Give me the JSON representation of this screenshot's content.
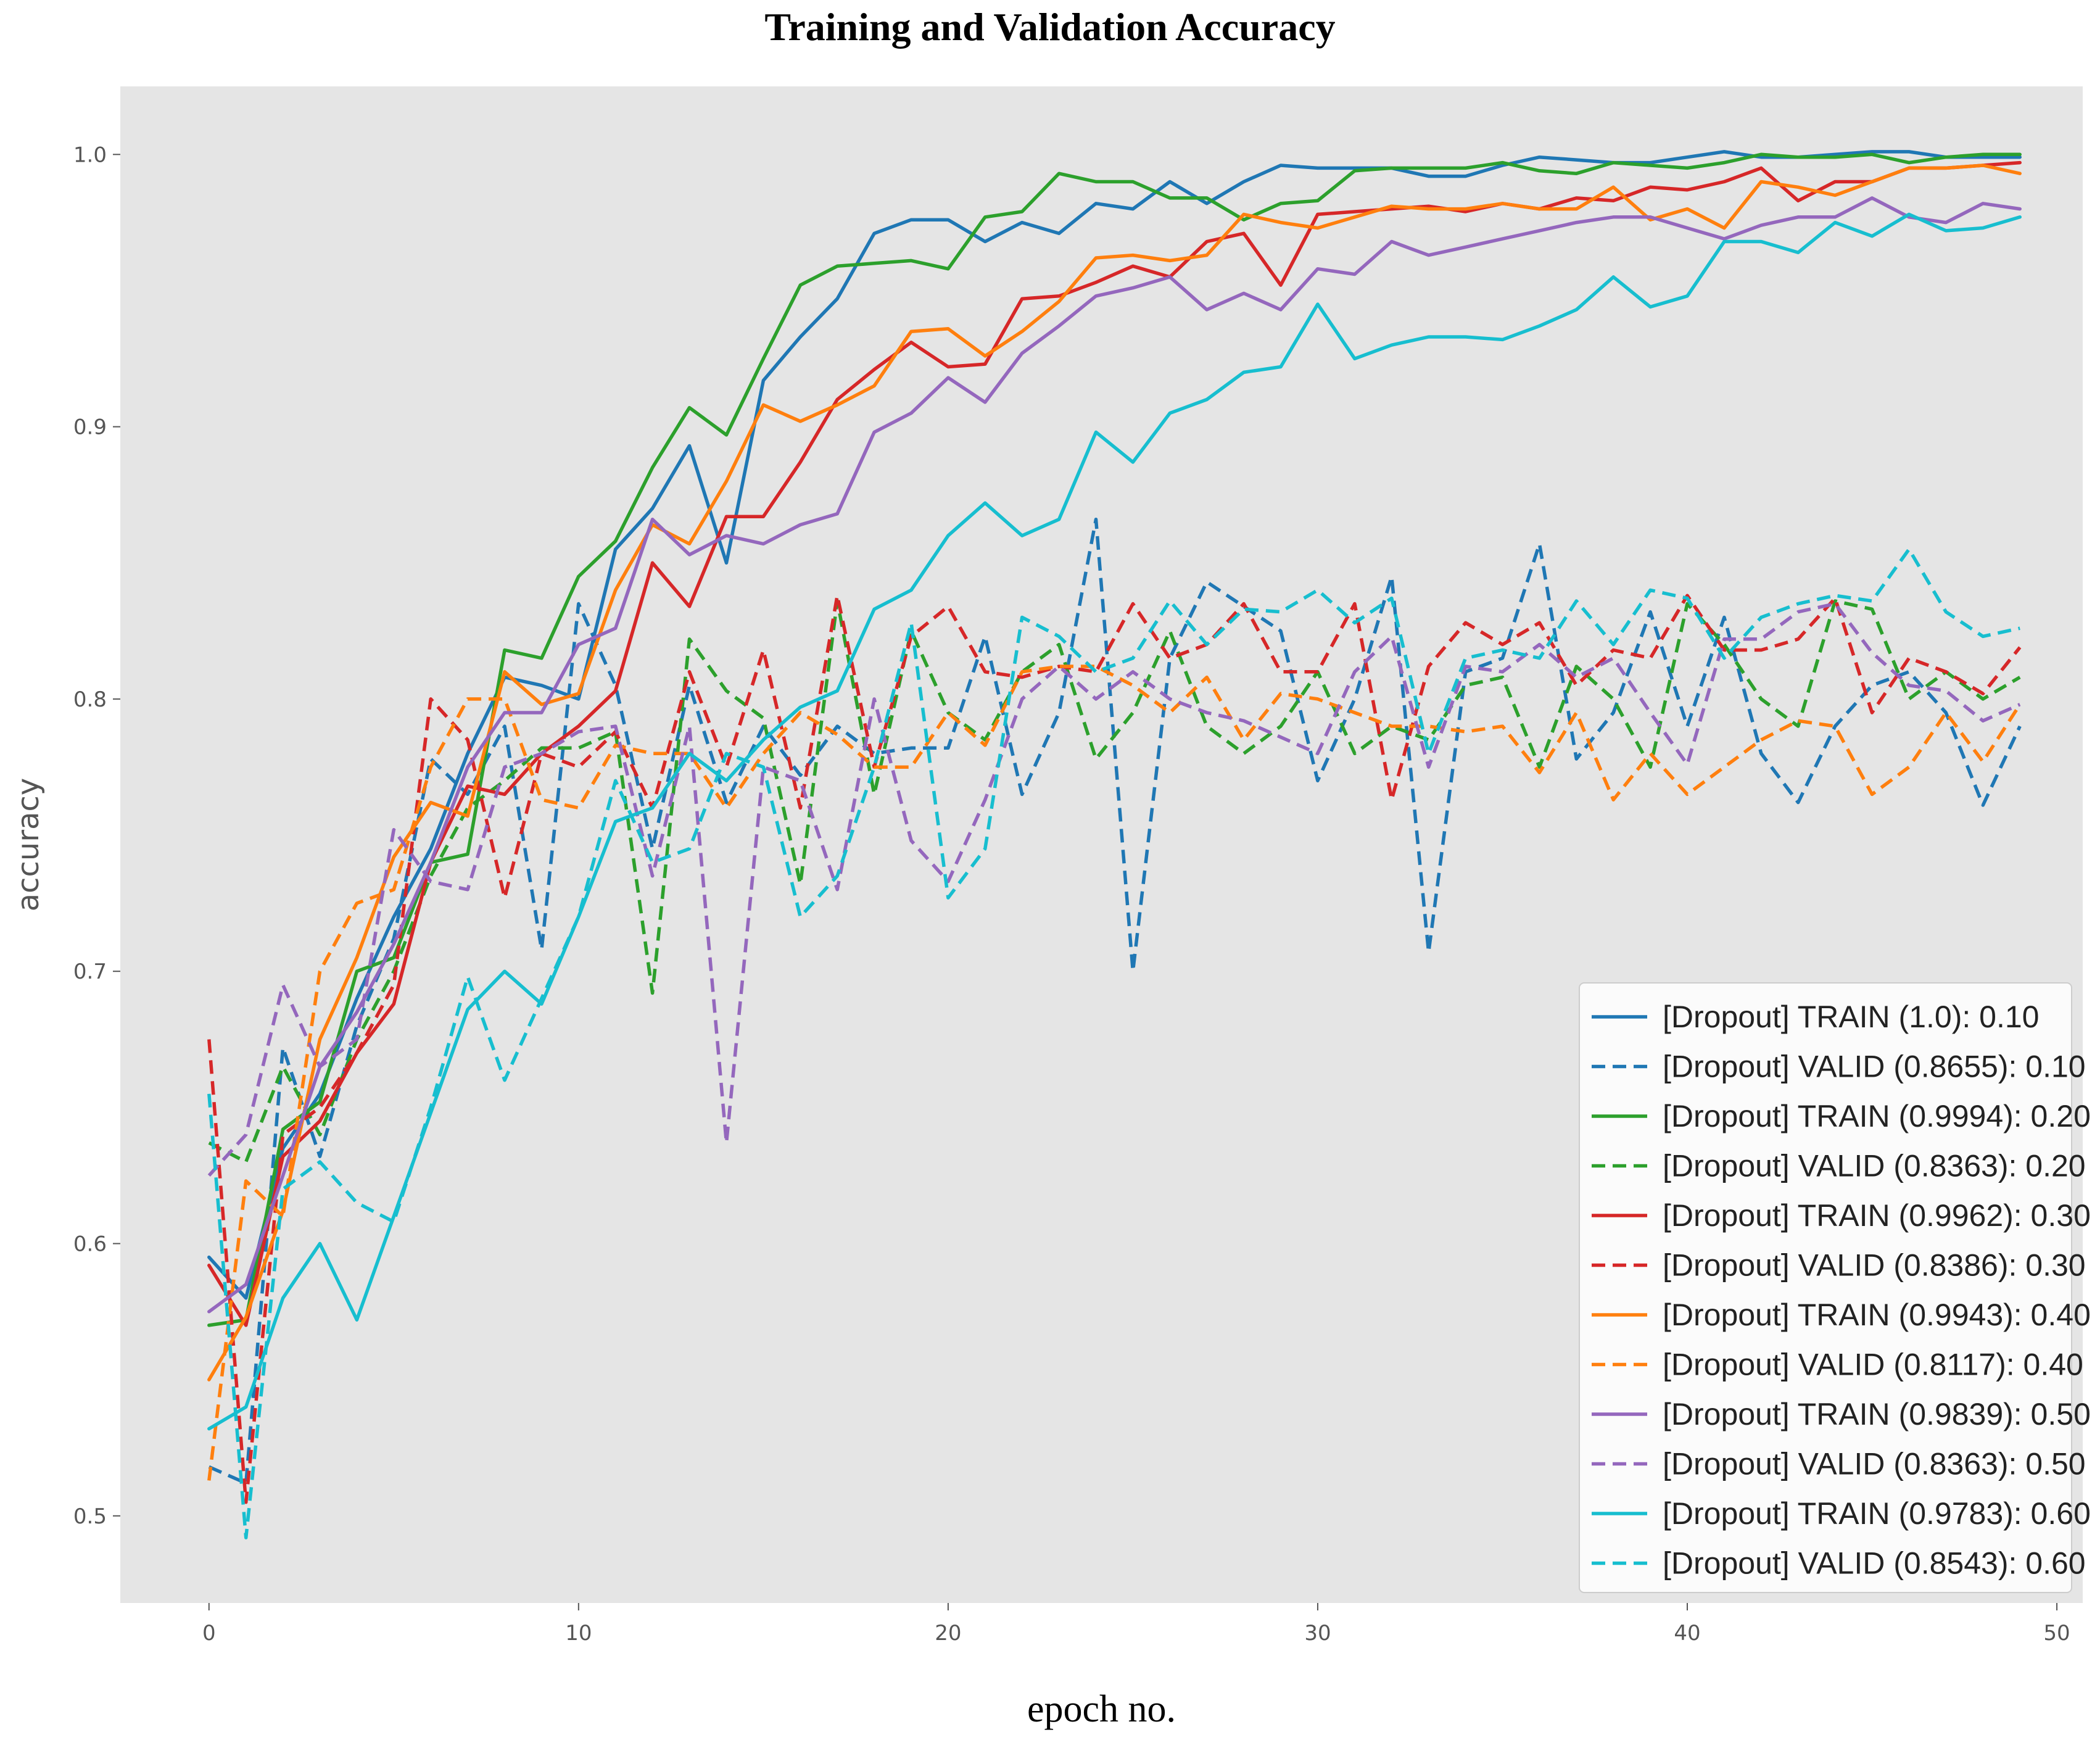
{
  "chart_data": {
    "type": "line",
    "title": "Training and Validation Accuracy",
    "xlabel": "epoch no.",
    "ylabel": "accuracy",
    "xlim": [
      -2.4,
      50.7
    ],
    "ylim": [
      0.468,
      1.025
    ],
    "xticks": [
      0,
      10,
      20,
      30,
      40,
      50
    ],
    "xtick_labels": [
      "0",
      "10",
      "20",
      "30",
      "40",
      "50"
    ],
    "yticks": [
      0.5,
      0.6,
      0.7,
      0.8,
      0.9,
      1.0
    ],
    "ytick_labels": [
      "0.5",
      "0.6",
      "0.7",
      "0.8",
      "0.9",
      "1.0"
    ],
    "grid": false,
    "legend_position": "bottom-right",
    "background": "#e5e5e5",
    "x": [
      0,
      1,
      2,
      3,
      4,
      5,
      6,
      7,
      8,
      9,
      10,
      11,
      12,
      13,
      14,
      15,
      16,
      17,
      18,
      19,
      20,
      21,
      22,
      23,
      24,
      25,
      26,
      27,
      28,
      29,
      30,
      31,
      32,
      33,
      34,
      35,
      36,
      37,
      38,
      39,
      40,
      41,
      42,
      43,
      44,
      45,
      46,
      47,
      48,
      49
    ],
    "series": [
      {
        "name": "[Dropout] TRAIN (1.0): 0.10",
        "color": "#1f77b4",
        "style": "solid",
        "values": [
          0.595,
          0.58,
          0.635,
          0.655,
          0.69,
          0.72,
          0.745,
          0.78,
          0.808,
          0.805,
          0.8,
          0.855,
          0.87,
          0.893,
          0.85,
          0.917,
          0.933,
          0.947,
          0.971,
          0.976,
          0.976,
          0.968,
          0.975,
          0.971,
          0.982,
          0.98,
          0.99,
          0.982,
          0.99,
          0.996,
          0.995,
          0.995,
          0.995,
          0.992,
          0.992,
          0.996,
          0.999,
          0.998,
          0.997,
          0.997,
          0.999,
          1.001,
          0.999,
          0.999,
          1.0,
          1.001,
          1.001,
          0.999,
          0.999,
          0.999
        ]
      },
      {
        "name": "[Dropout] VALID (0.8655): 0.10",
        "color": "#1f77b4",
        "style": "dashed",
        "values": [
          0.518,
          0.512,
          0.672,
          0.632,
          0.68,
          0.712,
          0.778,
          0.765,
          0.79,
          0.708,
          0.835,
          0.805,
          0.745,
          0.805,
          0.762,
          0.79,
          0.772,
          0.79,
          0.78,
          0.782,
          0.782,
          0.823,
          0.765,
          0.795,
          0.866,
          0.7,
          0.815,
          0.843,
          0.834,
          0.825,
          0.77,
          0.8,
          0.845,
          0.707,
          0.81,
          0.815,
          0.857,
          0.778,
          0.795,
          0.832,
          0.79,
          0.83,
          0.78,
          0.762,
          0.79,
          0.805,
          0.81,
          0.795,
          0.761,
          0.79
        ]
      },
      {
        "name": "[Dropout] TRAIN (0.9994): 0.20",
        "color": "#2ca02c",
        "style": "solid",
        "values": [
          0.57,
          0.572,
          0.642,
          0.652,
          0.7,
          0.705,
          0.74,
          0.743,
          0.818,
          0.815,
          0.845,
          0.858,
          0.885,
          0.907,
          0.897,
          0.925,
          0.952,
          0.959,
          0.96,
          0.961,
          0.958,
          0.977,
          0.979,
          0.993,
          0.99,
          0.99,
          0.984,
          0.984,
          0.976,
          0.982,
          0.983,
          0.994,
          0.995,
          0.995,
          0.995,
          0.997,
          0.994,
          0.993,
          0.997,
          0.996,
          0.995,
          0.997,
          1.0,
          0.999,
          0.999,
          1.0,
          0.997,
          0.999,
          1.0,
          1.0
        ]
      },
      {
        "name": "[Dropout] VALID (0.8363): 0.20",
        "color": "#2ca02c",
        "style": "dashed",
        "values": [
          0.637,
          0.63,
          0.665,
          0.64,
          0.675,
          0.7,
          0.735,
          0.76,
          0.77,
          0.782,
          0.782,
          0.788,
          0.692,
          0.822,
          0.803,
          0.793,
          0.732,
          0.836,
          0.765,
          0.825,
          0.795,
          0.785,
          0.81,
          0.82,
          0.778,
          0.795,
          0.825,
          0.79,
          0.78,
          0.79,
          0.81,
          0.78,
          0.79,
          0.785,
          0.805,
          0.808,
          0.775,
          0.812,
          0.8,
          0.775,
          0.835,
          0.82,
          0.8,
          0.79,
          0.836,
          0.833,
          0.8,
          0.81,
          0.8,
          0.808
        ]
      },
      {
        "name": "[Dropout] TRAIN (0.9962): 0.30",
        "color": "#d62728",
        "style": "solid",
        "values": [
          0.592,
          0.57,
          0.632,
          0.645,
          0.67,
          0.688,
          0.74,
          0.768,
          0.765,
          0.78,
          0.79,
          0.803,
          0.85,
          0.834,
          0.867,
          0.867,
          0.887,
          0.91,
          0.921,
          0.931,
          0.922,
          0.923,
          0.947,
          0.948,
          0.953,
          0.959,
          0.955,
          0.968,
          0.971,
          0.952,
          0.978,
          0.979,
          0.98,
          0.981,
          0.979,
          0.982,
          0.98,
          0.984,
          0.983,
          0.988,
          0.987,
          0.99,
          0.995,
          0.983,
          0.99,
          0.99,
          0.995,
          0.995,
          0.996,
          0.997
        ]
      },
      {
        "name": "[Dropout] VALID (0.8386): 0.30",
        "color": "#d62728",
        "style": "dashed",
        "values": [
          0.675,
          0.505,
          0.64,
          0.65,
          0.67,
          0.695,
          0.8,
          0.785,
          0.727,
          0.78,
          0.775,
          0.788,
          0.76,
          0.81,
          0.775,
          0.818,
          0.76,
          0.838,
          0.775,
          0.823,
          0.834,
          0.81,
          0.808,
          0.812,
          0.81,
          0.835,
          0.815,
          0.82,
          0.835,
          0.81,
          0.81,
          0.835,
          0.763,
          0.812,
          0.828,
          0.82,
          0.828,
          0.805,
          0.818,
          0.815,
          0.838,
          0.818,
          0.818,
          0.822,
          0.837,
          0.795,
          0.815,
          0.81,
          0.802,
          0.819
        ]
      },
      {
        "name": "[Dropout] TRAIN (0.9943): 0.40",
        "color": "#ff7f0e",
        "style": "solid",
        "values": [
          0.55,
          0.573,
          0.612,
          0.675,
          0.705,
          0.742,
          0.762,
          0.757,
          0.81,
          0.798,
          0.802,
          0.84,
          0.864,
          0.857,
          0.88,
          0.908,
          0.902,
          0.908,
          0.915,
          0.935,
          0.936,
          0.926,
          0.935,
          0.946,
          0.962,
          0.963,
          0.961,
          0.963,
          0.978,
          0.975,
          0.973,
          0.977,
          0.981,
          0.98,
          0.98,
          0.982,
          0.98,
          0.98,
          0.988,
          0.976,
          0.98,
          0.973,
          0.99,
          0.988,
          0.985,
          0.99,
          0.995,
          0.995,
          0.996,
          0.993
        ]
      },
      {
        "name": "[Dropout] VALID (0.8117): 0.40",
        "color": "#ff7f0e",
        "style": "dashed",
        "values": [
          0.513,
          0.623,
          0.61,
          0.7,
          0.725,
          0.73,
          0.775,
          0.8,
          0.8,
          0.763,
          0.76,
          0.783,
          0.78,
          0.78,
          0.76,
          0.78,
          0.795,
          0.787,
          0.775,
          0.775,
          0.795,
          0.783,
          0.81,
          0.812,
          0.812,
          0.805,
          0.795,
          0.808,
          0.785,
          0.802,
          0.8,
          0.795,
          0.79,
          0.79,
          0.788,
          0.79,
          0.773,
          0.795,
          0.763,
          0.78,
          0.765,
          0.775,
          0.785,
          0.792,
          0.79,
          0.765,
          0.775,
          0.795,
          0.777,
          0.798
        ]
      },
      {
        "name": "[Dropout] TRAIN (0.9839): 0.50",
        "color": "#9467bd",
        "style": "solid",
        "values": [
          0.575,
          0.585,
          0.625,
          0.665,
          0.685,
          0.71,
          0.74,
          0.775,
          0.795,
          0.795,
          0.82,
          0.826,
          0.866,
          0.853,
          0.86,
          0.857,
          0.864,
          0.868,
          0.898,
          0.905,
          0.918,
          0.909,
          0.927,
          0.937,
          0.948,
          0.951,
          0.955,
          0.943,
          0.949,
          0.943,
          0.958,
          0.956,
          0.968,
          0.963,
          0.966,
          0.969,
          0.972,
          0.975,
          0.977,
          0.977,
          0.973,
          0.969,
          0.974,
          0.977,
          0.977,
          0.984,
          0.977,
          0.975,
          0.982,
          0.98
        ]
      },
      {
        "name": "[Dropout] VALID (0.8363): 0.50",
        "color": "#9467bd",
        "style": "dashed",
        "values": [
          0.625,
          0.64,
          0.695,
          0.665,
          0.675,
          0.752,
          0.733,
          0.73,
          0.775,
          0.78,
          0.788,
          0.79,
          0.735,
          0.79,
          0.637,
          0.775,
          0.77,
          0.73,
          0.8,
          0.748,
          0.733,
          0.763,
          0.8,
          0.812,
          0.8,
          0.81,
          0.8,
          0.795,
          0.792,
          0.786,
          0.78,
          0.81,
          0.823,
          0.775,
          0.812,
          0.81,
          0.82,
          0.808,
          0.815,
          0.795,
          0.776,
          0.822,
          0.822,
          0.832,
          0.835,
          0.817,
          0.805,
          0.803,
          0.792,
          0.798
        ]
      },
      {
        "name": "[Dropout] TRAIN (0.9783): 0.60",
        "color": "#17becf",
        "style": "solid",
        "values": [
          0.532,
          0.54,
          0.58,
          0.6,
          0.572,
          0.61,
          0.648,
          0.686,
          0.7,
          0.688,
          0.72,
          0.755,
          0.76,
          0.78,
          0.77,
          0.785,
          0.797,
          0.803,
          0.833,
          0.84,
          0.86,
          0.872,
          0.86,
          0.866,
          0.898,
          0.887,
          0.905,
          0.91,
          0.92,
          0.922,
          0.945,
          0.925,
          0.93,
          0.933,
          0.933,
          0.932,
          0.937,
          0.943,
          0.955,
          0.944,
          0.948,
          0.968,
          0.968,
          0.964,
          0.975,
          0.97,
          0.978,
          0.972,
          0.973,
          0.977
        ]
      },
      {
        "name": "[Dropout] VALID (0.8543): 0.60",
        "color": "#17becf",
        "style": "dashed",
        "values": [
          0.655,
          0.492,
          0.62,
          0.63,
          0.615,
          0.608,
          0.65,
          0.698,
          0.66,
          0.69,
          0.72,
          0.77,
          0.74,
          0.745,
          0.78,
          0.775,
          0.72,
          0.735,
          0.775,
          0.828,
          0.727,
          0.745,
          0.83,
          0.823,
          0.81,
          0.815,
          0.836,
          0.82,
          0.833,
          0.832,
          0.84,
          0.828,
          0.837,
          0.78,
          0.815,
          0.818,
          0.815,
          0.836,
          0.82,
          0.84,
          0.837,
          0.815,
          0.83,
          0.835,
          0.838,
          0.836,
          0.855,
          0.832,
          0.823,
          0.826
        ]
      }
    ]
  }
}
